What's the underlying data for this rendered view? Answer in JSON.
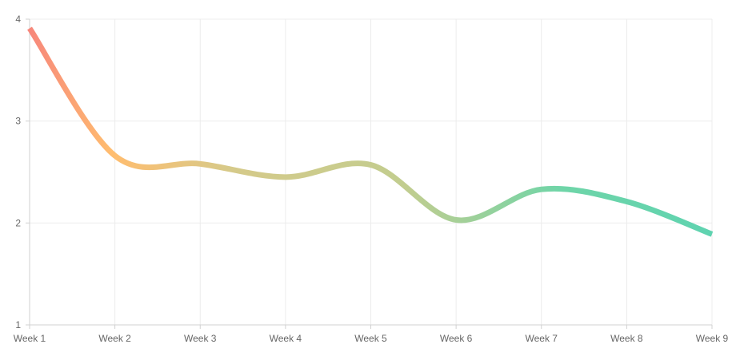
{
  "chart_data": {
    "type": "line",
    "categories": [
      "Week 1",
      "Week 2",
      "Week 3",
      "Week 4",
      "Week 5",
      "Week 6",
      "Week 7",
      "Week 8",
      "Week 9"
    ],
    "series": [
      {
        "values": [
          3.91,
          2.66,
          2.58,
          2.45,
          2.57,
          2.03,
          2.33,
          2.21,
          1.89
        ]
      }
    ],
    "ylim": [
      1,
      4
    ],
    "yticks": [
      1,
      2,
      3,
      4
    ],
    "grid": true,
    "legend": "none",
    "colors": {
      "gradient": [
        "#f7877b",
        "#ffbd6f",
        "#d5ca8a",
        "#c2cd8f",
        "#6fd5a8",
        "#5fd3b0"
      ],
      "grid": "#ececec",
      "axis": "#d0d0d0",
      "tick_text": "#666666"
    }
  }
}
